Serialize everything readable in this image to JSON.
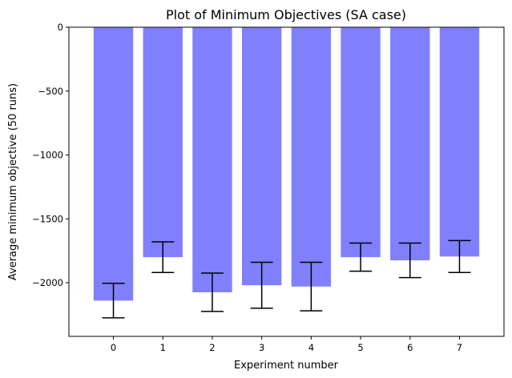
{
  "chart_data": {
    "type": "bar",
    "title": "Plot of Minimum Objectives (SA case)",
    "xlabel": "Experiment number",
    "ylabel": "Average minimum objective (50 runs)",
    "categories": [
      "0",
      "1",
      "2",
      "3",
      "4",
      "5",
      "6",
      "7"
    ],
    "values": [
      -2140,
      -1800,
      -2075,
      -2020,
      -2030,
      -1800,
      -1825,
      -1795
    ],
    "error": [
      135,
      120,
      150,
      180,
      190,
      110,
      135,
      125
    ],
    "yticks": [
      0,
      -500,
      -1000,
      -1500,
      -2000
    ],
    "ytick_labels": [
      "0",
      "−500",
      "−1000",
      "−1500",
      "−2000"
    ],
    "ylim": [
      -2420,
      0
    ],
    "bar_color": "#8080ff",
    "error_color": "#000000",
    "grid": false
  }
}
